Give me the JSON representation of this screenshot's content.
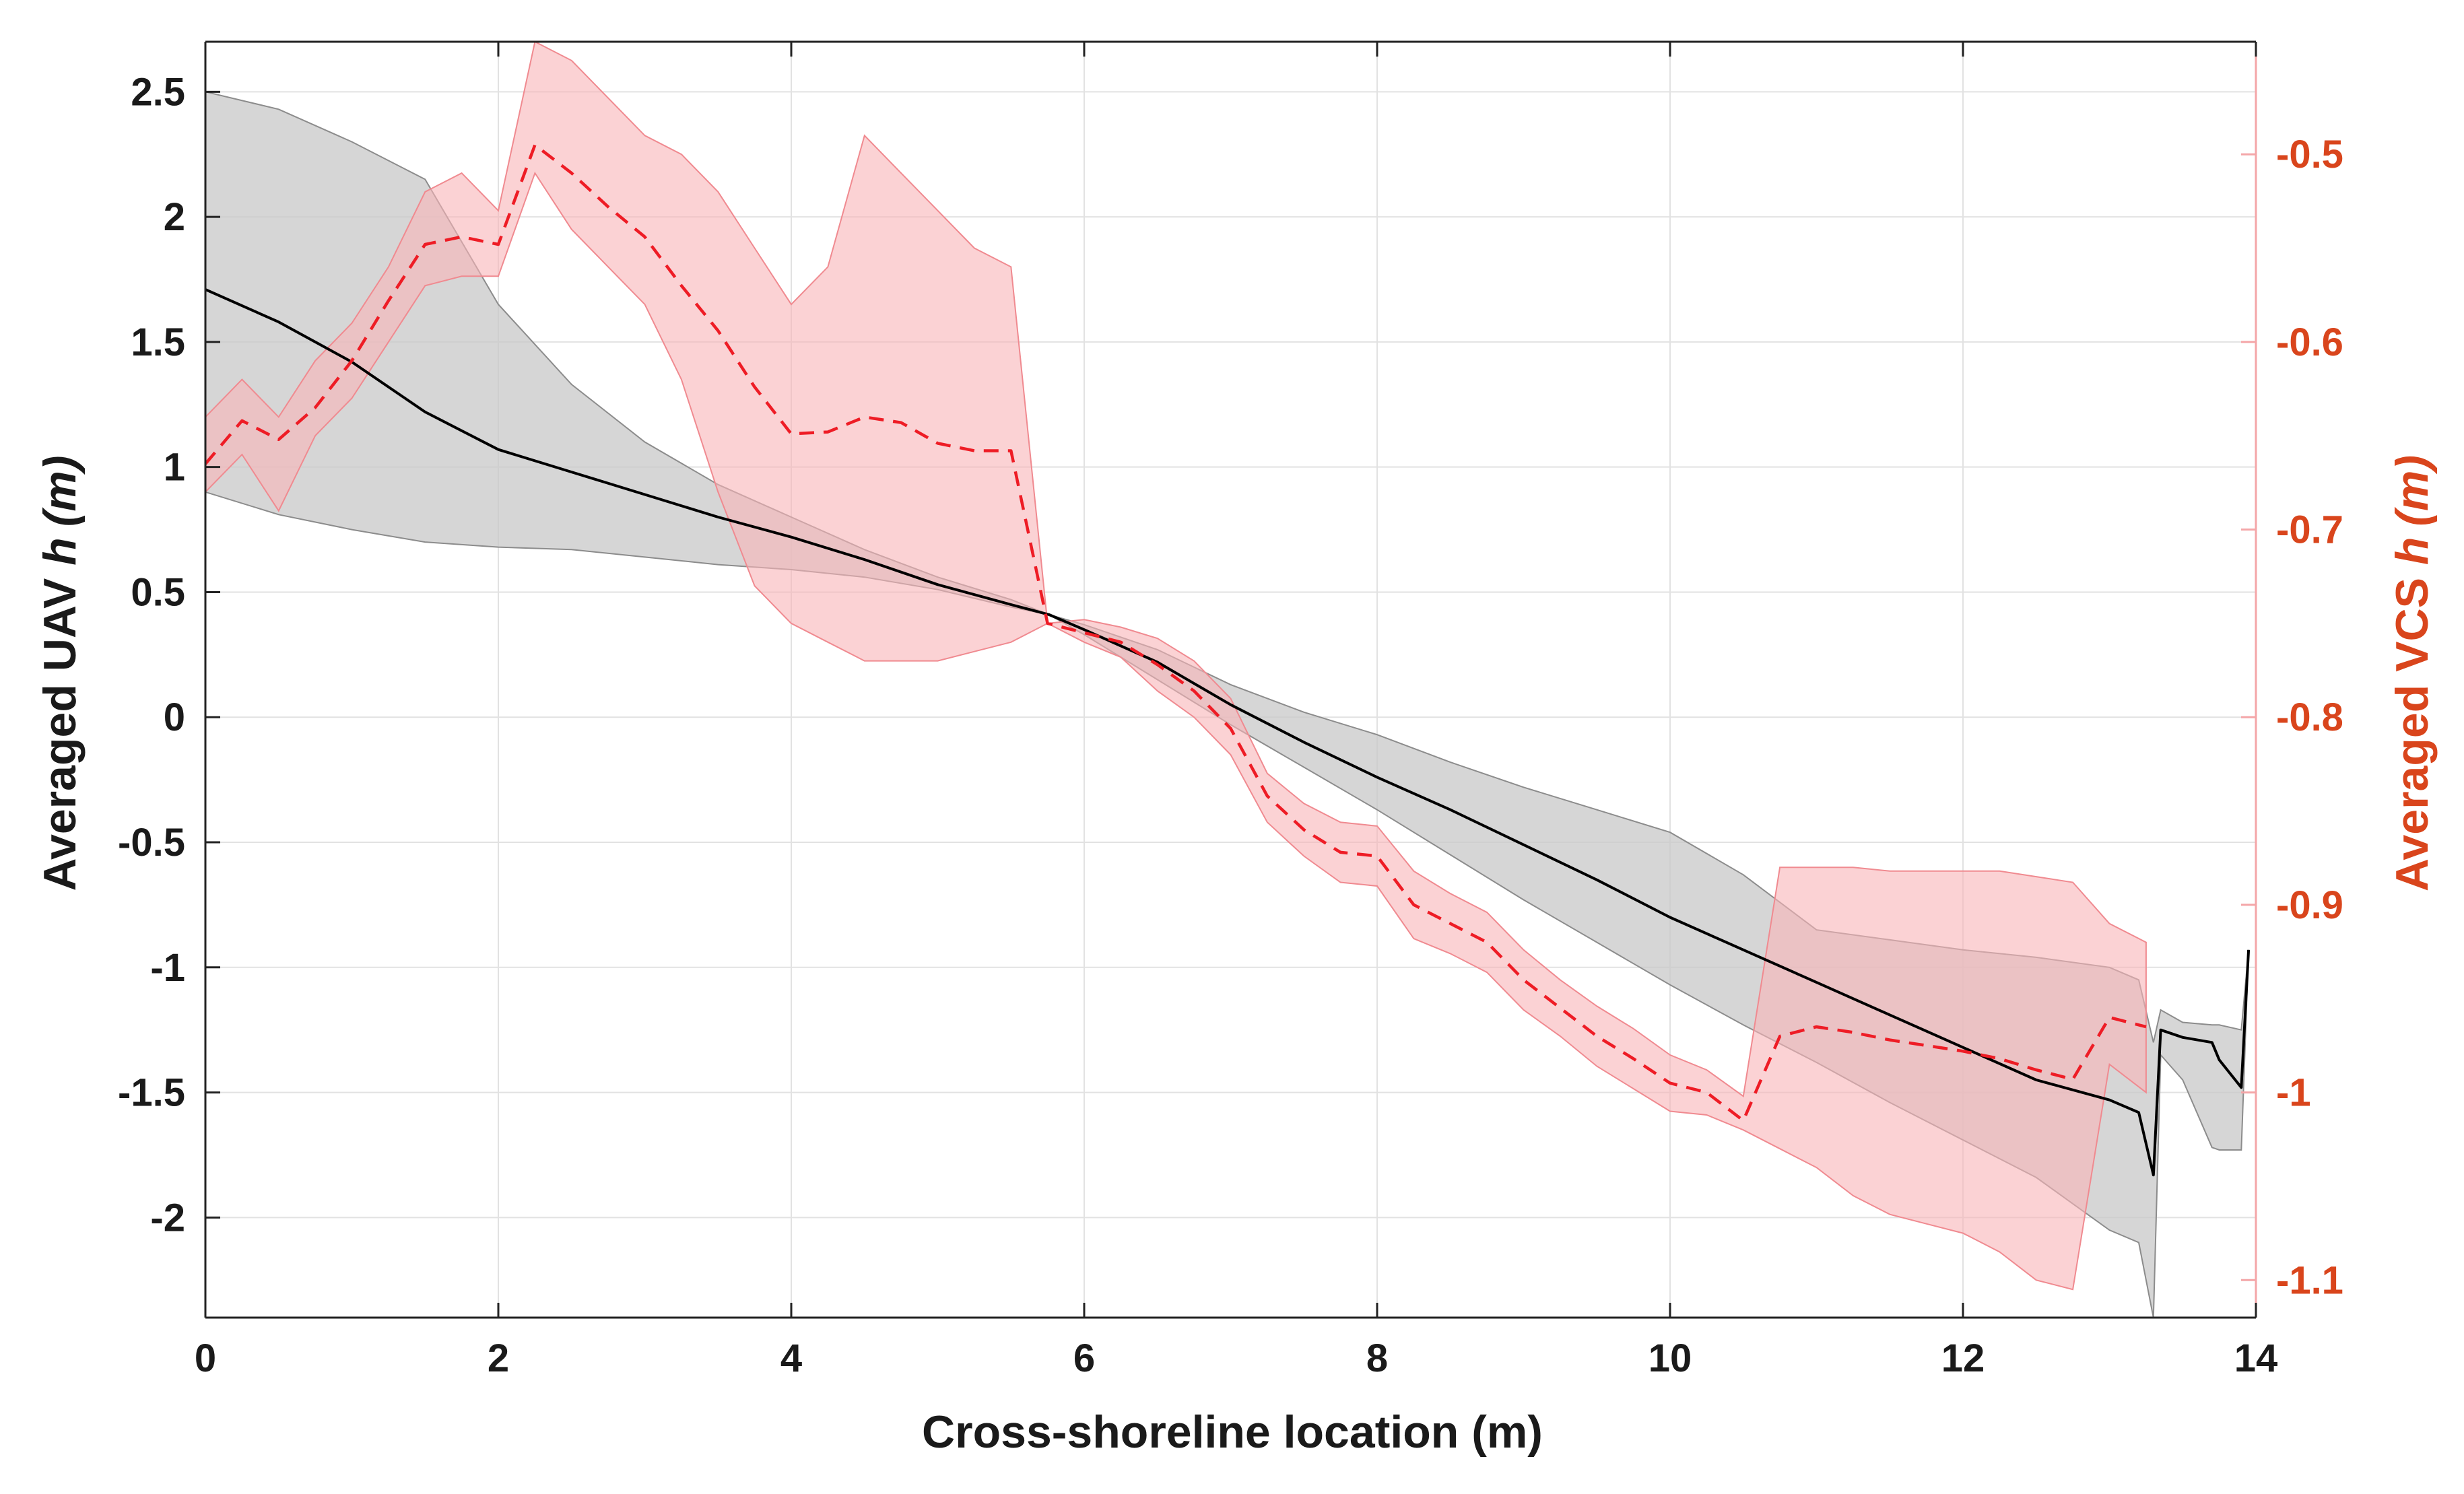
{
  "chart_data": {
    "type": "line",
    "title": "",
    "xlabel": "Cross-shoreline location (m)",
    "ylabel_left": "Averaged UAV  h (m)",
    "ylabel_left_prefix": "Averaged UAV ",
    "ylabel_left_var": "h",
    "ylabel_left_unit": "(m)",
    "ylabel_right": "Averaged VCS  h (m)",
    "ylabel_right_prefix": "Averaged VCS ",
    "ylabel_right_var": "h",
    "ylabel_right_unit": "(m)",
    "xlim": [
      0,
      14
    ],
    "ylim_left": [
      -2.4,
      2.7
    ],
    "ylim_right": [
      -1.12,
      -0.44
    ],
    "grid": true,
    "colors": {
      "uav_line": "#000000",
      "uav_band": "#c8c8c8",
      "vcs_line": "#ee1c25",
      "vcs_band": "#f9b4b8",
      "right_axis": "#d9451c",
      "right_axis_line": "#f4a6a8",
      "grid": "#e2e2e2"
    },
    "x_ticks": [
      {
        "value": 0,
        "label": "0"
      },
      {
        "value": 2,
        "label": "2"
      },
      {
        "value": 4,
        "label": "4"
      },
      {
        "value": 6,
        "label": "6"
      },
      {
        "value": 8,
        "label": "8"
      },
      {
        "value": 10,
        "label": "10"
      },
      {
        "value": 12,
        "label": "12"
      },
      {
        "value": 14,
        "label": "14"
      }
    ],
    "y_left_ticks": [
      {
        "value": 2.5,
        "label": "2.5"
      },
      {
        "value": 2,
        "label": "2"
      },
      {
        "value": 1.5,
        "label": "1.5"
      },
      {
        "value": 1,
        "label": "1"
      },
      {
        "value": 0.5,
        "label": "0.5"
      },
      {
        "value": 0,
        "label": "0"
      },
      {
        "value": -0.5,
        "label": "-0.5"
      },
      {
        "value": -1,
        "label": "-1"
      },
      {
        "value": -1.5,
        "label": "-1.5"
      },
      {
        "value": -2,
        "label": "-2"
      }
    ],
    "y_right_ticks": [
      {
        "value": -0.5,
        "label": "-0.5"
      },
      {
        "value": -0.6,
        "label": "-0.6"
      },
      {
        "value": -0.7,
        "label": "-0.7"
      },
      {
        "value": -0.8,
        "label": "-0.8"
      },
      {
        "value": -0.9,
        "label": "-0.9"
      },
      {
        "value": -1.0,
        "label": "-1"
      },
      {
        "value": -1.1,
        "label": "-1.1"
      }
    ],
    "series": [
      {
        "name": "Averaged UAV h",
        "axis": "left",
        "style": "solid",
        "x": [
          0,
          0.5,
          1.0,
          1.5,
          2.0,
          2.5,
          3.0,
          3.5,
          4.0,
          4.5,
          5.0,
          5.5,
          5.76,
          6.0,
          6.5,
          7.0,
          7.5,
          8.0,
          8.5,
          9.0,
          9.5,
          10.0,
          10.5,
          11.0,
          11.5,
          12.0,
          12.5,
          13.0,
          13.2,
          13.3,
          13.35,
          13.5,
          13.7,
          13.75,
          13.9,
          13.95
        ],
        "y": [
          1.71,
          1.58,
          1.42,
          1.22,
          1.07,
          0.98,
          0.89,
          0.8,
          0.72,
          0.63,
          0.53,
          0.45,
          0.41,
          0.35,
          0.22,
          0.05,
          -0.1,
          -0.24,
          -0.37,
          -0.51,
          -0.65,
          -0.8,
          -0.93,
          -1.06,
          -1.19,
          -1.32,
          -1.45,
          -1.53,
          -1.58,
          -1.83,
          -1.25,
          -1.28,
          -1.3,
          -1.37,
          -1.48,
          -0.93
        ],
        "upper": [
          2.5,
          2.43,
          2.3,
          2.15,
          1.65,
          1.33,
          1.1,
          0.93,
          0.8,
          0.67,
          0.56,
          0.47,
          0.41,
          0.37,
          0.27,
          0.13,
          0.02,
          -0.07,
          -0.18,
          -0.28,
          -0.37,
          -0.46,
          -0.63,
          -0.85,
          -0.89,
          -0.93,
          -0.96,
          -1.0,
          -1.05,
          -1.3,
          -1.17,
          -1.22,
          -1.23,
          -1.23,
          -1.25,
          -0.93
        ],
        "lower": [
          0.9,
          0.81,
          0.75,
          0.7,
          0.68,
          0.67,
          0.64,
          0.61,
          0.59,
          0.56,
          0.51,
          0.44,
          0.41,
          0.33,
          0.15,
          -0.03,
          -0.2,
          -0.37,
          -0.55,
          -0.73,
          -0.9,
          -1.07,
          -1.23,
          -1.38,
          -1.54,
          -1.69,
          -1.84,
          -2.05,
          -2.1,
          -2.4,
          -1.35,
          -1.45,
          -1.72,
          -1.73,
          -1.73,
          -0.93
        ]
      },
      {
        "name": "Averaged VCS h",
        "axis": "right",
        "style": "dashed",
        "x": [
          0,
          0.25,
          0.5,
          0.75,
          1.0,
          1.25,
          1.5,
          1.75,
          2.0,
          2.25,
          2.5,
          2.75,
          3.0,
          3.25,
          3.5,
          3.75,
          4.0,
          4.25,
          4.5,
          4.75,
          5.0,
          5.25,
          5.5,
          5.75,
          6.0,
          6.25,
          6.5,
          6.75,
          7.0,
          7.25,
          7.5,
          7.75,
          8.0,
          8.25,
          8.5,
          8.75,
          9.0,
          9.25,
          9.5,
          9.75,
          10.0,
          10.25,
          10.5,
          10.75,
          11.0,
          11.25,
          11.5,
          11.75,
          12.0,
          12.25,
          12.5,
          12.75,
          13.0,
          13.25
        ],
        "y": [
          -0.665,
          -0.642,
          -0.652,
          -0.635,
          -0.61,
          -0.578,
          -0.548,
          -0.544,
          -0.548,
          -0.495,
          -0.51,
          -0.528,
          -0.544,
          -0.57,
          -0.594,
          -0.624,
          -0.649,
          -0.648,
          -0.64,
          -0.643,
          -0.654,
          -0.658,
          -0.658,
          -0.75,
          -0.755,
          -0.76,
          -0.772,
          -0.786,
          -0.806,
          -0.842,
          -0.86,
          -0.872,
          -0.874,
          -0.9,
          -0.91,
          -0.92,
          -0.94,
          -0.955,
          -0.97,
          -0.982,
          -0.995,
          -1.0,
          -1.015,
          -0.97,
          -0.965,
          -0.968,
          -0.972,
          -0.975,
          -0.978,
          -0.982,
          -0.988,
          -0.993,
          -0.96,
          -0.965
        ],
        "upper": [
          -0.64,
          -0.62,
          -0.64,
          -0.61,
          -0.59,
          -0.56,
          -0.52,
          -0.51,
          -0.53,
          -0.44,
          -0.45,
          -0.47,
          -0.49,
          -0.5,
          -0.52,
          -0.55,
          -0.58,
          -0.56,
          -0.49,
          -0.51,
          -0.53,
          -0.55,
          -0.56,
          -0.75,
          -0.748,
          -0.752,
          -0.758,
          -0.77,
          -0.79,
          -0.83,
          -0.846,
          -0.856,
          -0.858,
          -0.882,
          -0.894,
          -0.904,
          -0.924,
          -0.94,
          -0.954,
          -0.966,
          -0.98,
          -0.988,
          -1.002,
          -0.88,
          -0.88,
          -0.88,
          -0.882,
          -0.882,
          -0.882,
          -0.882,
          -0.885,
          -0.888,
          -0.91,
          -0.92
        ],
        "upper_smooth": true,
        "lower": [
          -0.68,
          -0.66,
          -0.69,
          -0.65,
          -0.63,
          -0.6,
          -0.57,
          -0.565,
          -0.565,
          -0.51,
          -0.54,
          -0.56,
          -0.58,
          -0.62,
          -0.68,
          -0.73,
          -0.75,
          -0.76,
          -0.77,
          -0.77,
          -0.77,
          -0.765,
          -0.76,
          -0.75,
          -0.76,
          -0.768,
          -0.786,
          -0.8,
          -0.82,
          -0.856,
          -0.874,
          -0.888,
          -0.89,
          -0.918,
          -0.926,
          -0.936,
          -0.956,
          -0.97,
          -0.986,
          -0.998,
          -1.01,
          -1.012,
          -1.02,
          -1.03,
          -1.04,
          -1.055,
          -1.065,
          -1.07,
          -1.075,
          -1.085,
          -1.1,
          -1.105,
          -0.985,
          -1.0
        ]
      }
    ]
  }
}
